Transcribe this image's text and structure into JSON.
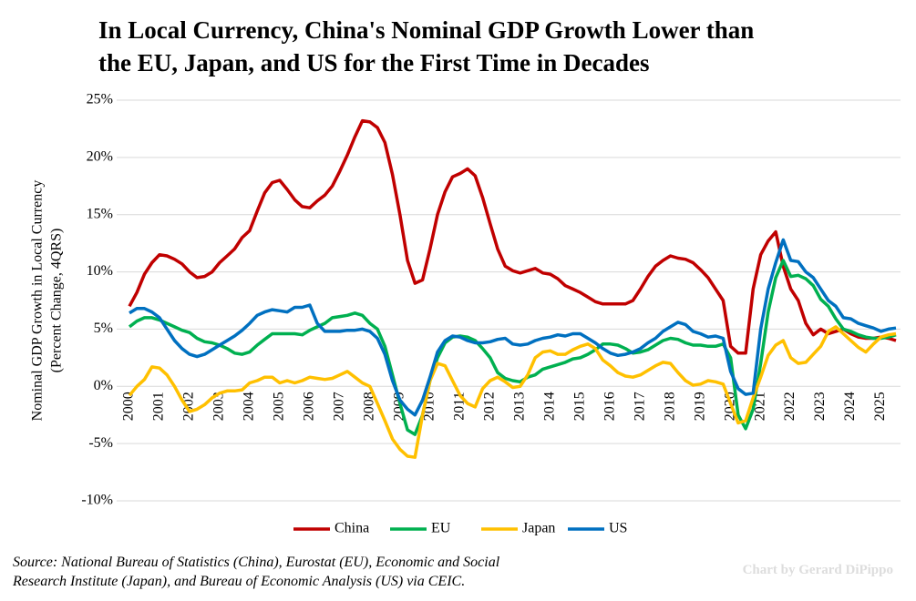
{
  "chart_data": {
    "type": "line",
    "title": [
      "In Local Currency, China's Nominal GDP Growth Lower than",
      "the EU, Japan, and US for the First Time in Decades"
    ],
    "y_label": [
      "Nominal GDP Growth in Local Currency",
      "(Percent Change, 4QRS)"
    ],
    "source": [
      "Source: National Bureau of Statistics (China), Eurostat (EU), Economic and Social",
      "Research Institute (Japan), and Bureau of Economic Analysis (US) via CEIC."
    ],
    "credit": "Chart by Gerard DiPippo",
    "x": [
      2000,
      2000.25,
      2000.5,
      2000.75,
      2001,
      2001.25,
      2001.5,
      2001.75,
      2002,
      2002.25,
      2002.5,
      2002.75,
      2003,
      2003.25,
      2003.5,
      2003.75,
      2004,
      2004.25,
      2004.5,
      2004.75,
      2005,
      2005.25,
      2005.5,
      2005.75,
      2006,
      2006.25,
      2006.5,
      2006.75,
      2007,
      2007.25,
      2007.5,
      2007.75,
      2008,
      2008.25,
      2008.5,
      2008.75,
      2009,
      2009.25,
      2009.5,
      2009.75,
      2010,
      2010.25,
      2010.5,
      2010.75,
      2011,
      2011.25,
      2011.5,
      2011.75,
      2012,
      2012.25,
      2012.5,
      2012.75,
      2013,
      2013.25,
      2013.5,
      2013.75,
      2014,
      2014.25,
      2014.5,
      2014.75,
      2015,
      2015.25,
      2015.5,
      2015.75,
      2016,
      2016.25,
      2016.5,
      2016.75,
      2017,
      2017.25,
      2017.5,
      2017.75,
      2018,
      2018.25,
      2018.5,
      2018.75,
      2019,
      2019.25,
      2019.5,
      2019.75,
      2020,
      2020.25,
      2020.5,
      2020.75,
      2021,
      2021.25,
      2021.5,
      2021.75,
      2022,
      2022.25,
      2022.5,
      2022.75,
      2023,
      2023.25,
      2023.5,
      2023.75,
      2024,
      2024.25,
      2024.5,
      2024.75,
      2025,
      2025.25,
      2025.5
    ],
    "series": [
      {
        "name": "China",
        "color": "#c00000",
        "values": [
          7.0,
          8.2,
          9.8,
          10.8,
          11.5,
          11.4,
          11.1,
          10.7,
          10.0,
          9.5,
          9.6,
          10.0,
          10.8,
          11.4,
          12.0,
          13.0,
          13.6,
          15.3,
          16.9,
          17.8,
          18.0,
          17.2,
          16.3,
          15.7,
          15.6,
          16.2,
          16.7,
          17.5,
          18.8,
          20.2,
          21.8,
          23.2,
          23.1,
          22.6,
          21.3,
          18.5,
          15.0,
          11.0,
          9.0,
          9.3,
          12.0,
          15.0,
          17.0,
          18.3,
          18.6,
          19.0,
          18.4,
          16.5,
          14.2,
          12.0,
          10.5,
          10.1,
          9.9,
          10.1,
          10.3,
          9.9,
          9.8,
          9.4,
          8.8,
          8.5,
          8.2,
          7.8,
          7.4,
          7.2,
          7.2,
          7.2,
          7.2,
          7.5,
          8.5,
          9.6,
          10.5,
          11.0,
          11.4,
          11.2,
          11.1,
          10.8,
          10.2,
          9.5,
          8.5,
          7.5,
          3.5,
          2.9,
          2.9,
          8.5,
          11.5,
          12.7,
          13.5,
          10.5,
          8.5,
          7.5,
          5.5,
          4.5,
          5.0,
          4.6,
          4.8,
          5.0,
          4.6,
          4.3,
          4.2,
          4.2,
          4.3,
          4.2,
          4.0
        ]
      },
      {
        "name": "EU",
        "color": "#00b050",
        "values": [
          5.2,
          5.7,
          6.0,
          6.0,
          5.8,
          5.5,
          5.2,
          4.9,
          4.7,
          4.2,
          3.9,
          3.8,
          3.6,
          3.3,
          2.9,
          2.8,
          3.0,
          3.6,
          4.1,
          4.6,
          4.6,
          4.6,
          4.6,
          4.5,
          4.9,
          5.2,
          5.5,
          6.0,
          6.1,
          6.2,
          6.4,
          6.2,
          5.5,
          5.0,
          3.5,
          1.0,
          -1.5,
          -3.8,
          -4.2,
          -2.5,
          0.5,
          2.5,
          3.8,
          4.3,
          4.4,
          4.3,
          4.0,
          3.3,
          2.5,
          1.2,
          0.7,
          0.5,
          0.4,
          0.8,
          1.0,
          1.5,
          1.7,
          1.9,
          2.1,
          2.4,
          2.5,
          2.8,
          3.2,
          3.7,
          3.7,
          3.6,
          3.3,
          2.9,
          3.0,
          3.2,
          3.6,
          4.0,
          4.2,
          4.1,
          3.8,
          3.6,
          3.6,
          3.5,
          3.5,
          3.7,
          2.5,
          -2.5,
          -3.7,
          -2.0,
          2.0,
          6.5,
          9.5,
          11.0,
          9.6,
          9.7,
          9.4,
          8.8,
          7.6,
          7.0,
          5.9,
          5.0,
          4.8,
          4.5,
          4.3,
          4.2,
          4.2,
          4.3,
          4.5
        ]
      },
      {
        "name": "Japan",
        "color": "#ffc000",
        "values": [
          -0.8,
          0.0,
          0.6,
          1.7,
          1.6,
          1.0,
          0.0,
          -1.2,
          -2.2,
          -2.0,
          -1.6,
          -1.0,
          -0.6,
          -0.4,
          -0.4,
          -0.3,
          0.3,
          0.5,
          0.8,
          0.8,
          0.3,
          0.5,
          0.3,
          0.5,
          0.8,
          0.7,
          0.6,
          0.7,
          1.0,
          1.3,
          0.8,
          0.3,
          0.0,
          -1.5,
          -3.0,
          -4.6,
          -5.5,
          -6.1,
          -6.2,
          -2.5,
          0.5,
          2.0,
          1.8,
          0.5,
          -0.8,
          -1.5,
          -1.8,
          -0.2,
          0.5,
          0.8,
          0.4,
          -0.1,
          0.0,
          1.0,
          2.5,
          3.0,
          3.1,
          2.8,
          2.8,
          3.2,
          3.5,
          3.7,
          3.3,
          2.3,
          1.8,
          1.2,
          0.9,
          0.8,
          1.0,
          1.4,
          1.8,
          2.1,
          2.0,
          1.2,
          0.5,
          0.1,
          0.2,
          0.5,
          0.4,
          0.2,
          -1.5,
          -3.2,
          -3.0,
          -1.0,
          0.8,
          2.7,
          3.6,
          4.0,
          2.5,
          2.0,
          2.1,
          2.8,
          3.5,
          4.8,
          5.2,
          4.6,
          4.0,
          3.4,
          3.0,
          3.7,
          4.3,
          4.5,
          4.6
        ]
      },
      {
        "name": "US",
        "color": "#0070c0",
        "values": [
          6.4,
          6.8,
          6.8,
          6.5,
          6.0,
          5.0,
          4.0,
          3.3,
          2.8,
          2.6,
          2.8,
          3.2,
          3.6,
          4.0,
          4.4,
          4.9,
          5.5,
          6.2,
          6.5,
          6.7,
          6.6,
          6.5,
          6.9,
          6.9,
          7.1,
          5.5,
          4.8,
          4.8,
          4.8,
          4.9,
          4.9,
          5.0,
          4.8,
          4.2,
          2.8,
          0.5,
          -1.2,
          -2.0,
          -2.5,
          -1.2,
          0.8,
          3.0,
          4.0,
          4.4,
          4.3,
          4.0,
          3.8,
          3.8,
          3.9,
          4.1,
          4.2,
          3.7,
          3.6,
          3.7,
          4.0,
          4.2,
          4.3,
          4.5,
          4.4,
          4.6,
          4.6,
          4.2,
          3.8,
          3.3,
          2.9,
          2.7,
          2.8,
          3.0,
          3.3,
          3.8,
          4.2,
          4.8,
          5.2,
          5.6,
          5.4,
          4.8,
          4.6,
          4.3,
          4.4,
          4.2,
          1.3,
          -0.2,
          -0.7,
          -0.6,
          5.0,
          8.5,
          10.8,
          12.8,
          11.0,
          10.9,
          10.0,
          9.5,
          8.5,
          7.5,
          7.0,
          6.0,
          5.9,
          5.5,
          5.3,
          5.1,
          4.8,
          5.0,
          5.1
        ]
      }
    ],
    "xlim": [
      2000,
      2025.5
    ],
    "xticks": [
      2000,
      2001,
      2002,
      2003,
      2004,
      2005,
      2006,
      2007,
      2008,
      2009,
      2010,
      2011,
      2012,
      2013,
      2014,
      2015,
      2016,
      2017,
      2018,
      2019,
      2020,
      2021,
      2022,
      2023,
      2024,
      2025
    ],
    "ylim": [
      -10,
      25
    ],
    "yticks": [
      {
        "value": -10,
        "label": "-10%"
      },
      {
        "value": -5,
        "label": "-5%"
      },
      {
        "value": 0,
        "label": "0%"
      },
      {
        "value": 5,
        "label": "5%"
      },
      {
        "value": 10,
        "label": "10%"
      },
      {
        "value": 15,
        "label": "15%"
      },
      {
        "value": 20,
        "label": "20%"
      },
      {
        "value": 25,
        "label": "25%"
      }
    ],
    "grid": true,
    "legend": "bottom"
  }
}
